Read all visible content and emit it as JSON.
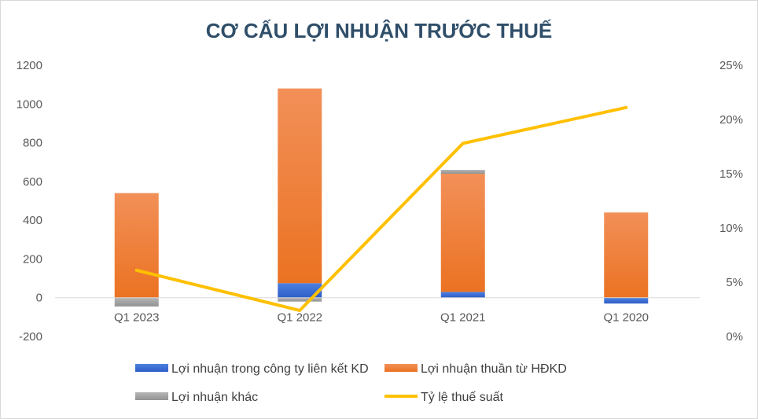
{
  "chart_data": {
    "type": "bar",
    "title": "CƠ CẤU LỢI NHUẬN TRƯỚC THUẾ",
    "categories": [
      "Q1 2023",
      "Q1 2022",
      "Q1 2021",
      "Q1 2020"
    ],
    "stacked": true,
    "series": [
      {
        "name": "Lợi nhuận trong công ty liên kết KD",
        "type": "bar",
        "axis": "left",
        "color": "#3a6fd8",
        "values": [
          0,
          75,
          30,
          -30
        ]
      },
      {
        "name": "Lợi nhuận thuần từ HĐKD",
        "type": "bar",
        "axis": "left",
        "color": "#f0832e",
        "values": [
          540,
          1005,
          610,
          440
        ]
      },
      {
        "name": "Lợi nhuận khác",
        "type": "bar",
        "axis": "left",
        "color": "#a5a5a5",
        "values": [
          -45,
          -20,
          20,
          0
        ]
      },
      {
        "name": "Tỷ lệ thuế suất",
        "type": "line",
        "axis": "right",
        "color": "#ffc000",
        "values": [
          6.1,
          2.4,
          17.8,
          21.1
        ]
      }
    ],
    "y_left": {
      "min": -200,
      "max": 1200,
      "ticks": [
        "-200",
        "0",
        "200",
        "400",
        "600",
        "800",
        "1000",
        "1200"
      ]
    },
    "y_right": {
      "min": 0,
      "max": 25,
      "ticks": [
        "0%",
        "5%",
        "10%",
        "15%",
        "20%",
        "25%"
      ]
    },
    "grid": false,
    "legend_position": "bottom"
  }
}
